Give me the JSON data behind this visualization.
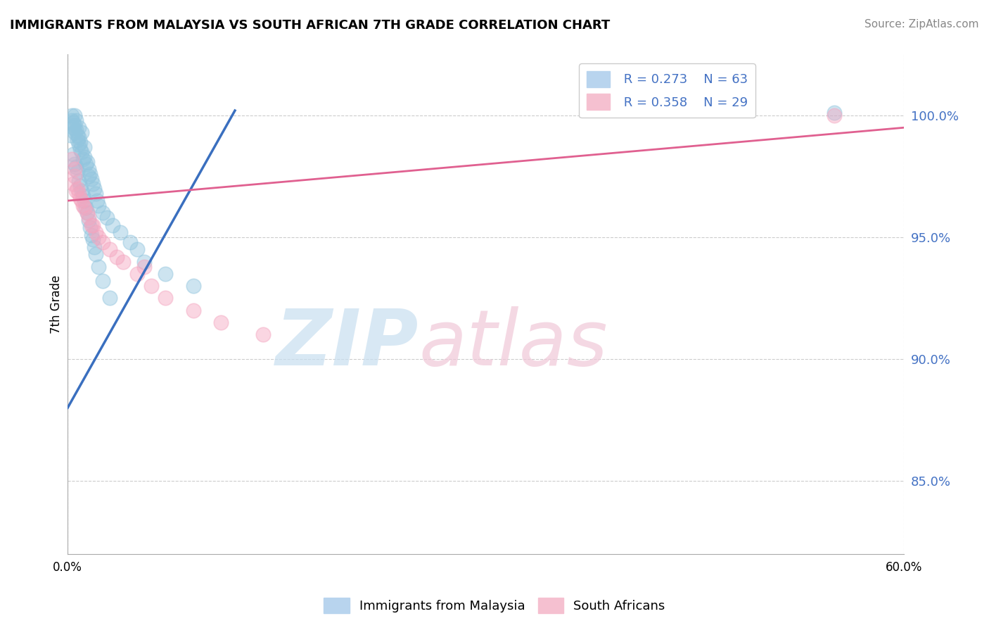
{
  "title": "IMMIGRANTS FROM MALAYSIA VS SOUTH AFRICAN 7TH GRADE CORRELATION CHART",
  "source": "Source: ZipAtlas.com",
  "ylabel": "7th Grade",
  "yticks_labels": [
    "100.0%",
    "95.0%",
    "90.0%",
    "85.0%"
  ],
  "ytick_values": [
    100.0,
    95.0,
    90.0,
    85.0
  ],
  "xlim": [
    0.0,
    60.0
  ],
  "ylim": [
    82.0,
    102.5
  ],
  "legend_r1": "R = 0.273",
  "legend_n1": "N = 63",
  "legend_r2": "R = 0.358",
  "legend_n2": "N = 29",
  "legend_label1": "Immigrants from Malaysia",
  "legend_label2": "South Africans",
  "blue_color": "#92c5de",
  "pink_color": "#f4a6c0",
  "blue_line_color": "#3a6fbf",
  "pink_line_color": "#e06090",
  "blue_points_x": [
    0.2,
    0.3,
    0.3,
    0.4,
    0.4,
    0.5,
    0.5,
    0.5,
    0.6,
    0.6,
    0.7,
    0.7,
    0.8,
    0.8,
    0.8,
    0.9,
    0.9,
    1.0,
    1.0,
    1.1,
    1.2,
    1.2,
    1.3,
    1.4,
    1.5,
    1.5,
    1.6,
    1.7,
    1.8,
    1.9,
    2.0,
    2.1,
    2.2,
    2.5,
    2.8,
    3.2,
    3.8,
    4.5,
    5.0,
    5.5,
    7.0,
    9.0,
    0.4,
    0.5,
    0.6,
    0.7,
    0.8,
    0.9,
    1.0,
    1.1,
    1.2,
    1.3,
    1.4,
    1.5,
    1.6,
    1.7,
    1.8,
    1.9,
    2.0,
    2.2,
    2.5,
    3.0,
    55.0
  ],
  "blue_points_y": [
    99.2,
    99.8,
    100.0,
    99.5,
    99.7,
    100.0,
    99.6,
    99.3,
    99.8,
    99.4,
    99.2,
    99.0,
    99.5,
    99.1,
    98.8,
    98.9,
    98.6,
    99.3,
    98.5,
    98.2,
    98.7,
    98.3,
    98.0,
    98.1,
    97.8,
    97.5,
    97.6,
    97.4,
    97.2,
    97.0,
    96.8,
    96.5,
    96.3,
    96.0,
    95.8,
    95.5,
    95.2,
    94.8,
    94.5,
    94.0,
    93.5,
    93.0,
    98.4,
    98.0,
    97.9,
    97.7,
    97.3,
    97.1,
    96.9,
    96.7,
    96.5,
    96.2,
    96.0,
    95.7,
    95.4,
    95.1,
    94.9,
    94.6,
    94.3,
    93.8,
    93.2,
    92.5,
    100.1
  ],
  "pink_points_x": [
    0.3,
    0.5,
    0.5,
    0.7,
    0.8,
    1.0,
    1.2,
    1.5,
    1.8,
    2.0,
    2.5,
    3.0,
    4.0,
    5.0,
    6.0,
    7.0,
    9.0,
    11.0,
    14.0,
    0.4,
    0.6,
    0.9,
    1.1,
    1.4,
    1.7,
    2.2,
    3.5,
    5.5,
    55.0
  ],
  "pink_points_y": [
    98.2,
    97.8,
    97.5,
    97.0,
    96.8,
    96.5,
    96.2,
    95.8,
    95.5,
    95.2,
    94.8,
    94.5,
    94.0,
    93.5,
    93.0,
    92.5,
    92.0,
    91.5,
    91.0,
    97.2,
    96.9,
    96.6,
    96.3,
    96.0,
    95.5,
    95.0,
    94.2,
    93.8,
    100.0
  ],
  "blue_line_x": [
    0.0,
    12.0
  ],
  "blue_line_y": [
    88.0,
    100.2
  ],
  "pink_line_x": [
    0.0,
    60.0
  ],
  "pink_line_y": [
    96.5,
    99.5
  ]
}
